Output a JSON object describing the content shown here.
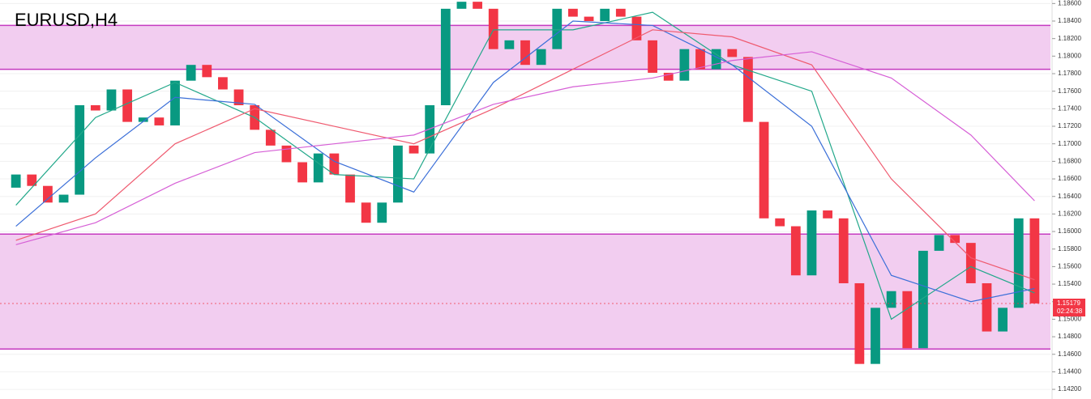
{
  "chart_data": {
    "type": "candlestick",
    "title": "EURUSD,H4",
    "open": [
      1.165,
      1.1665,
      1.1652,
      1.1633,
      1.1642,
      1.1744,
      1.1738,
      1.1762,
      1.1725,
      1.173,
      1.1721,
      1.1772,
      1.179,
      1.1776,
      1.1762,
      1.1744,
      1.1716,
      1.1698,
      1.1679,
      1.1656,
      1.1689,
      1.1665,
      1.1633,
      1.161,
      1.1633,
      1.1698,
      1.1689,
      1.1744,
      1.1854,
      1.1862,
      1.1854,
      1.1808,
      1.1818,
      1.179,
      1.1808,
      1.1854,
      1.1845,
      1.184,
      1.1854,
      1.1845,
      1.1818,
      1.1781,
      1.1772,
      1.1808,
      1.1785,
      1.1808,
      1.1799,
      1.1725,
      1.1615,
      1.1606,
      1.155,
      1.1624,
      1.1615,
      1.1541,
      1.1449,
      1.1513,
      1.1532,
      1.1467,
      1.1578,
      1.1596,
      1.1587,
      1.1541,
      1.1486,
      1.1513,
      1.1615
    ],
    "close": [
      1.1665,
      1.1652,
      1.1633,
      1.1642,
      1.1744,
      1.1738,
      1.1762,
      1.1725,
      1.173,
      1.1721,
      1.1772,
      1.179,
      1.1776,
      1.1762,
      1.1744,
      1.1716,
      1.1698,
      1.1679,
      1.1656,
      1.1689,
      1.1665,
      1.1633,
      1.161,
      1.1633,
      1.1698,
      1.1689,
      1.1744,
      1.1854,
      1.1862,
      1.1854,
      1.1808,
      1.1818,
      1.179,
      1.1808,
      1.1854,
      1.1845,
      1.184,
      1.1854,
      1.1845,
      1.1818,
      1.1781,
      1.1772,
      1.1808,
      1.1785,
      1.1808,
      1.1799,
      1.1725,
      1.1615,
      1.1606,
      1.155,
      1.1624,
      1.1615,
      1.1541,
      1.1449,
      1.1513,
      1.1532,
      1.1467,
      1.1578,
      1.1596,
      1.1587,
      1.1541,
      1.1486,
      1.1513,
      1.1615,
      1.1518
    ],
    "up_color": "#089981",
    "down_color": "#f23645",
    "series": [
      {
        "color": "#22a88a",
        "x": [
          0,
          5,
          10,
          15,
          20,
          25,
          30,
          35,
          40,
          45,
          50,
          55,
          60,
          64
        ],
        "values": [
          1.163,
          1.173,
          1.177,
          1.173,
          1.1665,
          1.166,
          1.183,
          1.183,
          1.185,
          1.179,
          1.176,
          1.15,
          1.156,
          1.153
        ]
      },
      {
        "color": "#3b6fd8",
        "x": [
          0,
          5,
          10,
          15,
          20,
          25,
          30,
          35,
          40,
          45,
          50,
          55,
          60,
          64
        ],
        "values": [
          1.1606,
          1.1684,
          1.1753,
          1.1745,
          1.168,
          1.1645,
          1.177,
          1.184,
          1.1835,
          1.179,
          1.172,
          1.155,
          1.152,
          1.1535
        ]
      },
      {
        "color": "#ef5a6f",
        "x": [
          0,
          5,
          10,
          15,
          20,
          25,
          30,
          35,
          40,
          45,
          50,
          55,
          60,
          64
        ],
        "values": [
          1.159,
          1.162,
          1.17,
          1.174,
          1.172,
          1.17,
          1.174,
          1.1785,
          1.183,
          1.1822,
          1.179,
          1.166,
          1.157,
          1.1545
        ]
      },
      {
        "color": "#d65fd6",
        "x": [
          0,
          5,
          10,
          15,
          20,
          25,
          30,
          35,
          40,
          45,
          50,
          55,
          60,
          64
        ],
        "values": [
          1.1585,
          1.161,
          1.1655,
          1.169,
          1.17,
          1.171,
          1.1745,
          1.1765,
          1.1775,
          1.1795,
          1.1805,
          1.1775,
          1.171,
          1.1635
        ]
      }
    ],
    "zones": [
      {
        "from": 1.1785,
        "to": 1.1835
      },
      {
        "from": 1.1466,
        "to": 1.1597
      }
    ],
    "zone_color": "#f2cdf0",
    "zone_border": "#c53ac0",
    "last_price": {
      "value": 1.15179,
      "label": "1.15179"
    },
    "countdown": "02:24:38",
    "xlim": [
      -1,
      65
    ],
    "ylim": [
      1.1409,
      1.1864
    ],
    "yticks": [
      {
        "value": 1.142,
        "label": "1.14200"
      },
      {
        "value": 1.144,
        "label": "1.14400"
      },
      {
        "value": 1.146,
        "label": "1.14600"
      },
      {
        "value": 1.148,
        "label": "1.14800"
      },
      {
        "value": 1.15,
        "label": "1.15000"
      },
      {
        "value": 1.152,
        "label": "1.15200"
      },
      {
        "value": 1.154,
        "label": "1.15400"
      },
      {
        "value": 1.156,
        "label": "1.15600"
      },
      {
        "value": 1.158,
        "label": "1.15800"
      },
      {
        "value": 1.16,
        "label": "1.16000"
      },
      {
        "value": 1.162,
        "label": "1.16200"
      },
      {
        "value": 1.164,
        "label": "1.16400"
      },
      {
        "value": 1.166,
        "label": "1.16600"
      },
      {
        "value": 1.168,
        "label": "1.16800"
      },
      {
        "value": 1.17,
        "label": "1.17000"
      },
      {
        "value": 1.172,
        "label": "1.17200"
      },
      {
        "value": 1.174,
        "label": "1.17400"
      },
      {
        "value": 1.176,
        "label": "1.17600"
      },
      {
        "value": 1.178,
        "label": "1.17800"
      },
      {
        "value": 1.18,
        "label": "1.18000"
      },
      {
        "value": 1.182,
        "label": "1.18200"
      },
      {
        "value": 1.184,
        "label": "1.18400"
      },
      {
        "value": 1.186,
        "label": "1.18600"
      }
    ],
    "grid": true
  }
}
